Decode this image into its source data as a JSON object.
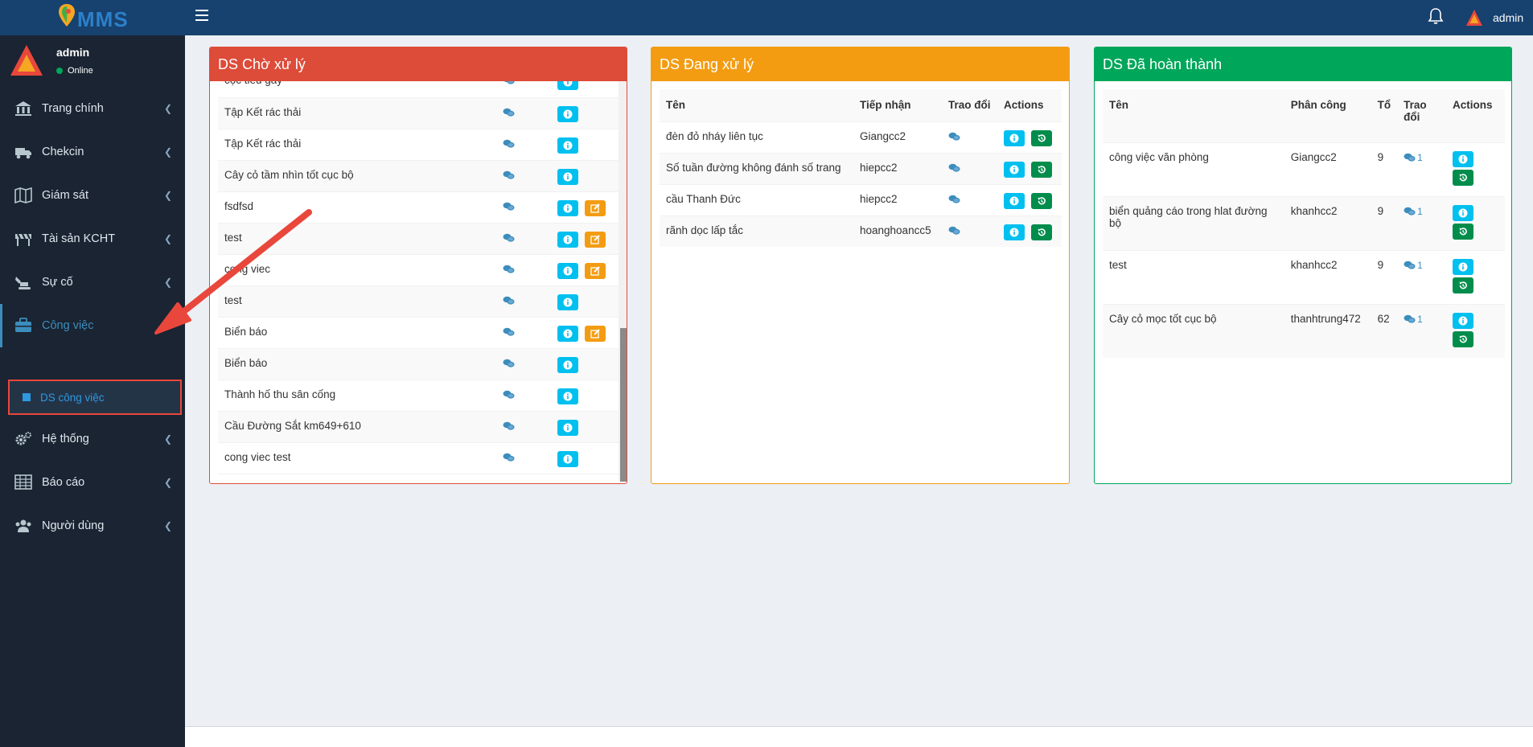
{
  "header": {
    "logo_text": "MMS",
    "user_name": "admin"
  },
  "sidebar": {
    "user_name": "admin",
    "status": "Online",
    "items": [
      {
        "label": "Trang chính",
        "icon": "bank-icon"
      },
      {
        "label": "Chekcin",
        "icon": "truck-icon"
      },
      {
        "label": "Giám sát",
        "icon": "map-icon"
      },
      {
        "label": "Tài sản KCHT",
        "icon": "barrier-icon"
      },
      {
        "label": "Sự cố",
        "icon": "excavator-icon"
      },
      {
        "label": "Công việc",
        "icon": "briefcase-icon"
      },
      {
        "label": "Hệ thống",
        "icon": "gears-icon"
      },
      {
        "label": "Báo cáo",
        "icon": "table-icon"
      },
      {
        "label": "Người dùng",
        "icon": "users-icon"
      }
    ],
    "submenu_label": "DS công việc"
  },
  "panels": {
    "pending": {
      "title": "DS Chờ xử lý",
      "rows": [
        {
          "name": "cọc tiêu gãy",
          "edit": false
        },
        {
          "name": "Tập Kết rác thải",
          "edit": false
        },
        {
          "name": "Tập Kết rác thải",
          "edit": false
        },
        {
          "name": "Cây cỏ tầm nhìn tốt cục bộ",
          "edit": false
        },
        {
          "name": "fsdfsd",
          "edit": true
        },
        {
          "name": "test",
          "edit": true
        },
        {
          "name": "cong viec",
          "edit": true
        },
        {
          "name": "test",
          "edit": false
        },
        {
          "name": "Biển báo",
          "edit": true
        },
        {
          "name": "Biển báo",
          "edit": false
        },
        {
          "name": "Thành hố thu sân cống",
          "edit": false
        },
        {
          "name": "Cầu Đường Sắt km649+610",
          "edit": false
        },
        {
          "name": "cong viec test",
          "edit": false
        }
      ]
    },
    "processing": {
      "title": "DS Đang xử lý",
      "headers": {
        "name": "Tên",
        "receiver": "Tiếp nhận",
        "chat": "Trao đổi",
        "actions": "Actions"
      },
      "rows": [
        {
          "name": "đèn đỏ nháy liên tục",
          "receiver": "Giangcc2"
        },
        {
          "name": "Số tuần đường không đánh số trang",
          "receiver": "hiepcc2"
        },
        {
          "name": "cầu Thanh Đức",
          "receiver": "hiepcc2"
        },
        {
          "name": "rãnh dọc lấp tắc",
          "receiver": "hoanghoancc5"
        }
      ]
    },
    "done": {
      "title": "DS Đã hoàn thành",
      "headers": {
        "name": "Tên",
        "assign": "Phân công",
        "team": "Tổ",
        "chat_line1": "Trao",
        "chat_line2": "đổi",
        "actions": "Actions"
      },
      "rows": [
        {
          "name": "công việc văn phòng",
          "assign": "Giangcc2",
          "team": "9",
          "chat_count": "1"
        },
        {
          "name": "biển quảng cáo trong hlat đường bộ",
          "assign": "khanhcc2",
          "team": "9",
          "chat_count": "1"
        },
        {
          "name": "test",
          "assign": "khanhcc2",
          "team": "9",
          "chat_count": "1"
        },
        {
          "name": "Cây cỏ mọc tốt cục bộ",
          "assign": "thanhtrung472",
          "team": "62",
          "chat_count": "1"
        }
      ]
    }
  },
  "colors": {
    "header": "#17416f",
    "sidebar": "#1a2432",
    "pending": "#dd4b39",
    "processing": "#f39c12",
    "done": "#00a65a",
    "info_button": "#00c0ef",
    "annotation": "#e9473c"
  }
}
